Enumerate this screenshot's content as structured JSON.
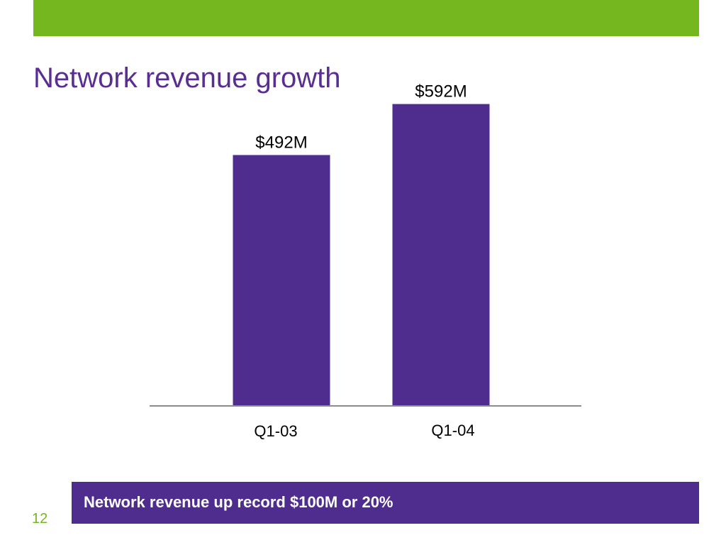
{
  "colors": {
    "accent_green": "#74b71f",
    "brand_purple": "#4f2d8f",
    "title_purple": "#5a2d91",
    "axis_gray": "#8c8c8c",
    "text_black": "#000000",
    "page_number_green": "#74b71f"
  },
  "slide": {
    "title": "Network revenue growth",
    "callout": "Network revenue up record $100M or 20%",
    "page_number": "12"
  },
  "chart_data": {
    "type": "bar",
    "title": "",
    "categories": [
      "Q1-03",
      "Q1-04"
    ],
    "values": [
      492,
      592
    ],
    "data_labels": [
      "$492M",
      "$592M"
    ],
    "unit": "$M",
    "ylim": [
      0,
      700
    ],
    "grid": false,
    "legend": "none"
  }
}
